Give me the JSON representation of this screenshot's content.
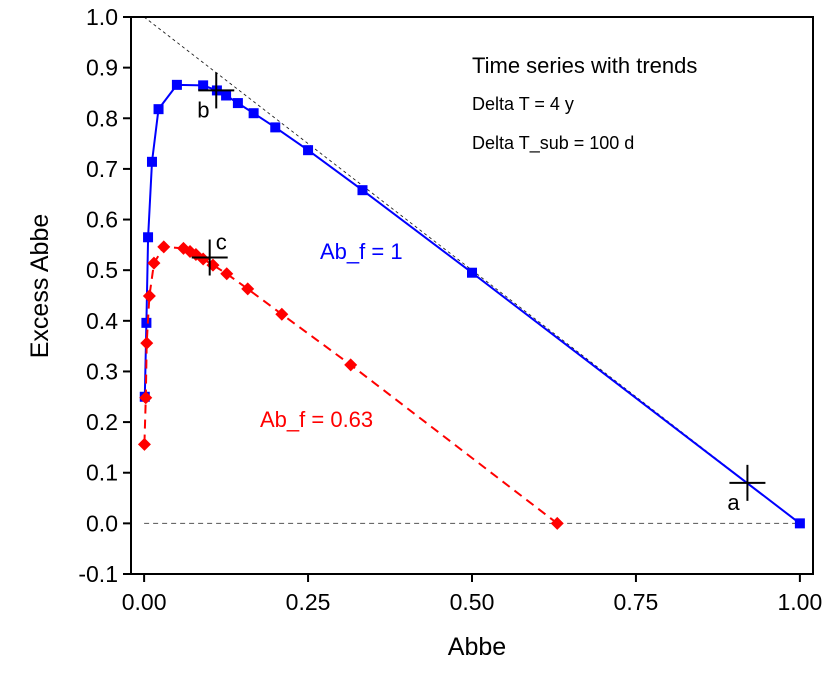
{
  "chart_data": {
    "type": "line",
    "title": "",
    "xlabel": "Abbe",
    "ylabel": "Excess Abbe",
    "xlim": [
      -0.02,
      1.02
    ],
    "ylim": [
      -0.1,
      1.0
    ],
    "x_ticks": [
      0.0,
      0.25,
      0.5,
      0.75,
      1.0
    ],
    "x_tick_labels": [
      "0.00",
      "0.25",
      "0.50",
      "0.75",
      "1.00"
    ],
    "y_ticks": [
      -0.1,
      0.0,
      0.1,
      0.2,
      0.3,
      0.4,
      0.5,
      0.6,
      0.7,
      0.8,
      0.9,
      1.0
    ],
    "y_tick_labels": [
      "-0.1",
      "0.0",
      "0.1",
      "0.2",
      "0.3",
      "0.4",
      "0.5",
      "0.6",
      "0.7",
      "0.8",
      "0.9",
      "1.0"
    ],
    "grid": false,
    "annotations": {
      "title": "Time series with trends",
      "line1": "Delta T = 4 y",
      "line2": "Delta T_sub = 100 d"
    },
    "reference_lines": [
      {
        "name": "diagonal",
        "x": [
          0.0,
          1.0
        ],
        "y": [
          1.0,
          0.0
        ],
        "style": "dashed"
      },
      {
        "name": "zero",
        "x": [
          0.0,
          1.0
        ],
        "y": [
          0.0,
          0.0
        ],
        "style": "dashed"
      }
    ],
    "series": [
      {
        "name": "Ab_f = 1",
        "label": "Ab_f = 1",
        "color": "#0000ff",
        "marker": "square",
        "linestyle": "solid",
        "x": [
          1.0,
          0.5,
          0.333,
          0.25,
          0.2,
          0.167,
          0.143,
          0.125,
          0.111,
          0.09,
          0.05,
          0.022,
          0.012,
          0.006,
          0.0035,
          0.001
        ],
        "y": [
          0.0,
          0.495,
          0.658,
          0.737,
          0.782,
          0.81,
          0.83,
          0.845,
          0.855,
          0.865,
          0.866,
          0.818,
          0.714,
          0.565,
          0.396,
          0.25
        ]
      },
      {
        "name": "Ab_f = 0.63",
        "label": "Ab_f = 0.63",
        "color": "#ff0000",
        "marker": "diamond",
        "linestyle": "dashed",
        "x": [
          0.63,
          0.315,
          0.21,
          0.158,
          0.126,
          0.105,
          0.09,
          0.079,
          0.07,
          0.06,
          0.03,
          0.015,
          0.008,
          0.004,
          0.0025,
          0.0005
        ],
        "y": [
          0.0,
          0.313,
          0.413,
          0.463,
          0.493,
          0.51,
          0.522,
          0.531,
          0.537,
          0.543,
          0.546,
          0.514,
          0.449,
          0.356,
          0.248,
          0.156
        ]
      }
    ],
    "points": [
      {
        "label": "a",
        "x": 0.92,
        "y": 0.08
      },
      {
        "label": "b",
        "x": 0.11,
        "y": 0.855
      },
      {
        "label": "c",
        "x": 0.1,
        "y": 0.525
      }
    ]
  }
}
